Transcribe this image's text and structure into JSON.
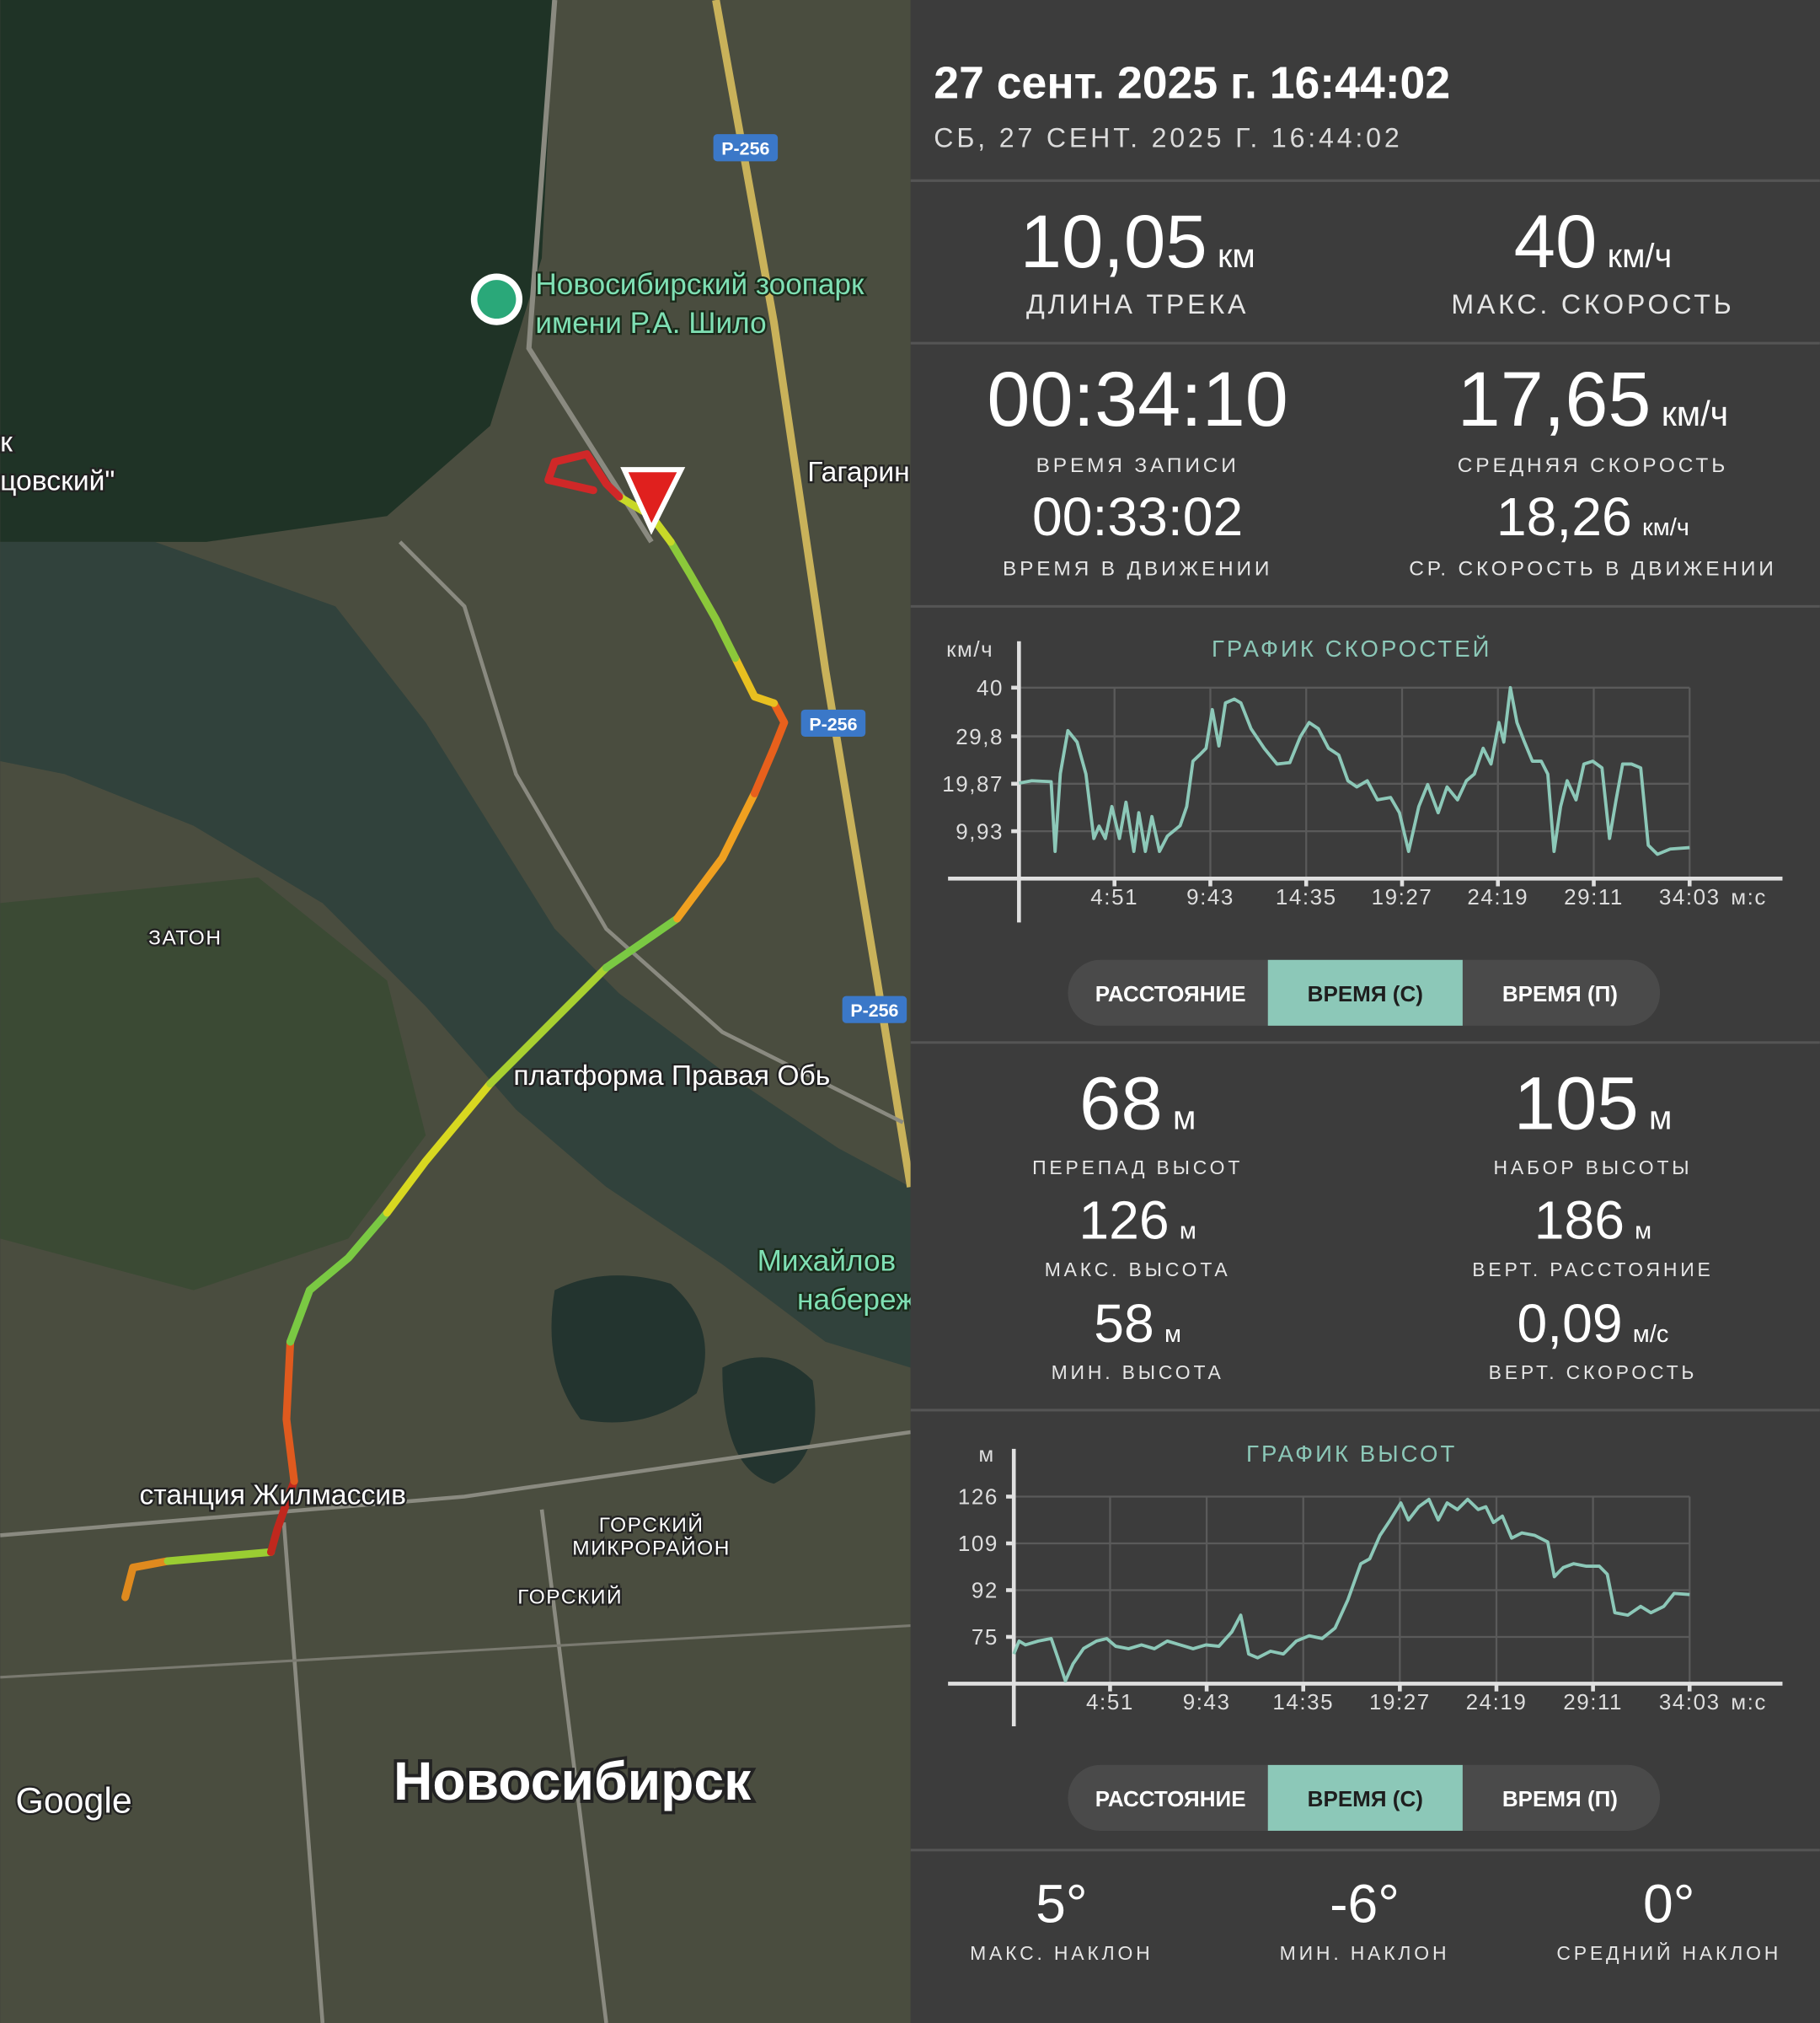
{
  "map": {
    "labels": [
      "Новосибирский зоопарк",
      "имени Р.А. Шило",
      "к",
      "цовский\"",
      "Гагарин",
      "ЗАТОН",
      "платформа Правая Обь",
      "Михайлов",
      "набереж",
      "станция Жилмассив",
      "ГОРСКИЙ",
      "МИКРОРАЙОН",
      "ГОРСКИЙ",
      "Новосибирск",
      "Google"
    ],
    "road_badges": [
      "Р-256",
      "Р-256",
      "Р-256"
    ]
  },
  "header": {
    "title": "27 сент. 2025 г. 16:44:02",
    "subtitle": "СБ, 27 СЕНТ. 2025 Г. 16:44:02"
  },
  "stats": [
    {
      "value": "10,05",
      "unit": "км",
      "label": "ДЛИНА ТРЕКА"
    },
    {
      "value": "40",
      "unit": "км/ч",
      "label": "МАКС. СКОРОСТЬ"
    },
    {
      "value": "00:34:10",
      "label": "ВРЕМЯ ЗАПИСИ"
    },
    {
      "value": "17,65",
      "unit": "км/ч",
      "label": "СРЕДНЯЯ СКОРОСТЬ"
    },
    {
      "value": "00:33:02",
      "label": "ВРЕМЯ В ДВИЖЕНИИ"
    },
    {
      "value": "18,26",
      "unit": "км/ч",
      "label": "СР. СКОРОСТЬ В ДВИЖЕНИИ"
    },
    {
      "value": "68",
      "unit": "м",
      "label": "ПЕРЕПАД ВЫСОТ"
    },
    {
      "value": "105",
      "unit": "м",
      "label": "НАБОР ВЫСОТЫ"
    },
    {
      "value": "126",
      "unit": "м",
      "label": "МАКС. ВЫСОТА"
    },
    {
      "value": "186",
      "unit": "м",
      "label": "ВЕРТ. РАССТОЯНИЕ"
    },
    {
      "value": "58",
      "unit": "м",
      "label": "МИН. ВЫСОТА"
    },
    {
      "value": "0,09",
      "unit": "м/с",
      "label": "ВЕРТ. СКОРОСТЬ"
    }
  ],
  "slopes": [
    {
      "value": "5°",
      "label": "МАКС. НАКЛОН"
    },
    {
      "value": "-6°",
      "label": "МИН. НАКЛОН"
    },
    {
      "value": "0°",
      "label": "СРЕДНИЙ НАКЛОН"
    }
  ],
  "controls": [
    {
      "options": [
        "РАССТОЯНИЕ",
        "ВРЕМЯ (С)",
        "ВРЕМЯ (П)"
      ],
      "active": 1
    },
    {
      "options": [
        "РАССТОЯНИЕ",
        "ВРЕМЯ (С)",
        "ВРЕМЯ (П)"
      ],
      "active": 1
    }
  ],
  "chart_data": [
    {
      "type": "line",
      "title": "ГРАФИК СКОРОСТЕЙ",
      "y_unit": "км/ч",
      "x_unit": "м:с",
      "color": "#8cc8b8",
      "grid": true,
      "x": [
        0,
        39,
        98,
        110,
        126,
        149,
        177,
        204,
        228,
        244,
        263,
        283,
        306,
        326,
        350,
        365,
        385,
        405,
        428,
        452,
        491,
        511,
        530,
        550,
        570,
        589,
        609,
        629,
        656,
        676,
        707,
        747,
        786,
        825,
        857,
        884,
        912,
        943,
        974,
        1002,
        1029,
        1061,
        1092,
        1132,
        1159,
        1187,
        1218,
        1245,
        1277,
        1304,
        1336,
        1363,
        1387,
        1414,
        1438,
        1462,
        1477,
        1497,
        1517,
        1540,
        1564,
        1591,
        1611,
        1630,
        1650,
        1670,
        1697,
        1721,
        1748,
        1776,
        1799,
        1819,
        1839,
        1866,
        1894,
        1917,
        1945,
        1984,
        2043
      ],
      "values": [
        20,
        20.5,
        20.3,
        5.7,
        22,
        31,
        28.6,
        21.9,
        8.4,
        11,
        8.4,
        15.1,
        8.4,
        16,
        5.7,
        13.8,
        5.7,
        13,
        5.7,
        8.9,
        11.1,
        15.1,
        24.6,
        25.9,
        27.3,
        35.4,
        27.8,
        36.8,
        37.6,
        36.8,
        31.4,
        27.3,
        24,
        24.3,
        29.7,
        32.7,
        31.4,
        27.3,
        25.9,
        20.5,
        19.2,
        20.5,
        16.5,
        17,
        13.8,
        5.7,
        15.1,
        19.7,
        13.8,
        19.2,
        16.5,
        20.5,
        21.9,
        27.3,
        24,
        32.7,
        28.6,
        40,
        32.7,
        28.6,
        24.6,
        24.6,
        21.9,
        5.7,
        15.1,
        20.5,
        16.5,
        24,
        24.6,
        23.2,
        8.4,
        16.5,
        24,
        24,
        23.2,
        7,
        5.1,
        6.2,
        6.5
      ],
      "xlim": [
        0,
        2043
      ],
      "ylim": [
        0,
        40
      ],
      "xticks": [
        {
          "value": 291,
          "label": "4:51"
        },
        {
          "value": 583,
          "label": "9:43"
        },
        {
          "value": 875,
          "label": "14:35"
        },
        {
          "value": 1167,
          "label": "19:27"
        },
        {
          "value": 1459,
          "label": "24:19"
        },
        {
          "value": 1751,
          "label": "29:11"
        },
        {
          "value": 2043,
          "label": "34:03"
        }
      ],
      "yticks": [
        {
          "value": 9.93,
          "label": "9,93"
        },
        {
          "value": 19.87,
          "label": "19,87"
        },
        {
          "value": 29.8,
          "label": "29,8"
        },
        40
      ]
    },
    {
      "type": "line",
      "title": "ГРАФИК ВЫСОТ",
      "y_unit": "м",
      "x_unit": "м:с",
      "color": "#8cc8b8",
      "grid": true,
      "x": [
        0,
        16,
        35,
        74,
        113,
        133,
        156,
        179,
        211,
        250,
        281,
        308,
        347,
        386,
        425,
        464,
        503,
        542,
        581,
        620,
        659,
        686,
        710,
        737,
        776,
        815,
        854,
        893,
        932,
        971,
        1010,
        1049,
        1076,
        1107,
        1138,
        1170,
        1193,
        1224,
        1255,
        1283,
        1310,
        1341,
        1372,
        1404,
        1427,
        1450,
        1477,
        1505,
        1536,
        1575,
        1614,
        1634,
        1661,
        1692,
        1731,
        1770,
        1794,
        1817,
        1856,
        1895,
        1926,
        1965,
        1996,
        2043
      ],
      "values": [
        68.8,
        73.5,
        72.1,
        73.5,
        74.4,
        67.4,
        59,
        65.2,
        70.8,
        73.5,
        74.4,
        71.6,
        70.7,
        72.1,
        70.7,
        73.5,
        72.1,
        70.7,
        72.1,
        71.6,
        76.8,
        82.9,
        68.8,
        67.4,
        69.8,
        68.8,
        73.5,
        75.4,
        74.4,
        78.2,
        88.5,
        101.6,
        103.4,
        111.9,
        117.5,
        123.7,
        117.5,
        122.3,
        125,
        117.5,
        123.7,
        121.3,
        125,
        121.3,
        122.3,
        116.6,
        118.9,
        110.9,
        112.8,
        111.9,
        109.5,
        96.9,
        100.2,
        101.6,
        100.7,
        100.7,
        97.8,
        83.8,
        82.9,
        86.1,
        83.8,
        86.1,
        90.8,
        90.4
      ],
      "xlim": [
        0,
        2043
      ],
      "ylim": [
        58,
        126
      ],
      "xticks": [
        {
          "value": 291,
          "label": "4:51"
        },
        {
          "value": 583,
          "label": "9:43"
        },
        {
          "value": 875,
          "label": "14:35"
        },
        {
          "value": 1167,
          "label": "19:27"
        },
        {
          "value": 1459,
          "label": "24:19"
        },
        {
          "value": 1751,
          "label": "29:11"
        },
        {
          "value": 2043,
          "label": "34:03"
        }
      ],
      "yticks": [
        75,
        92,
        109,
        126
      ]
    }
  ]
}
